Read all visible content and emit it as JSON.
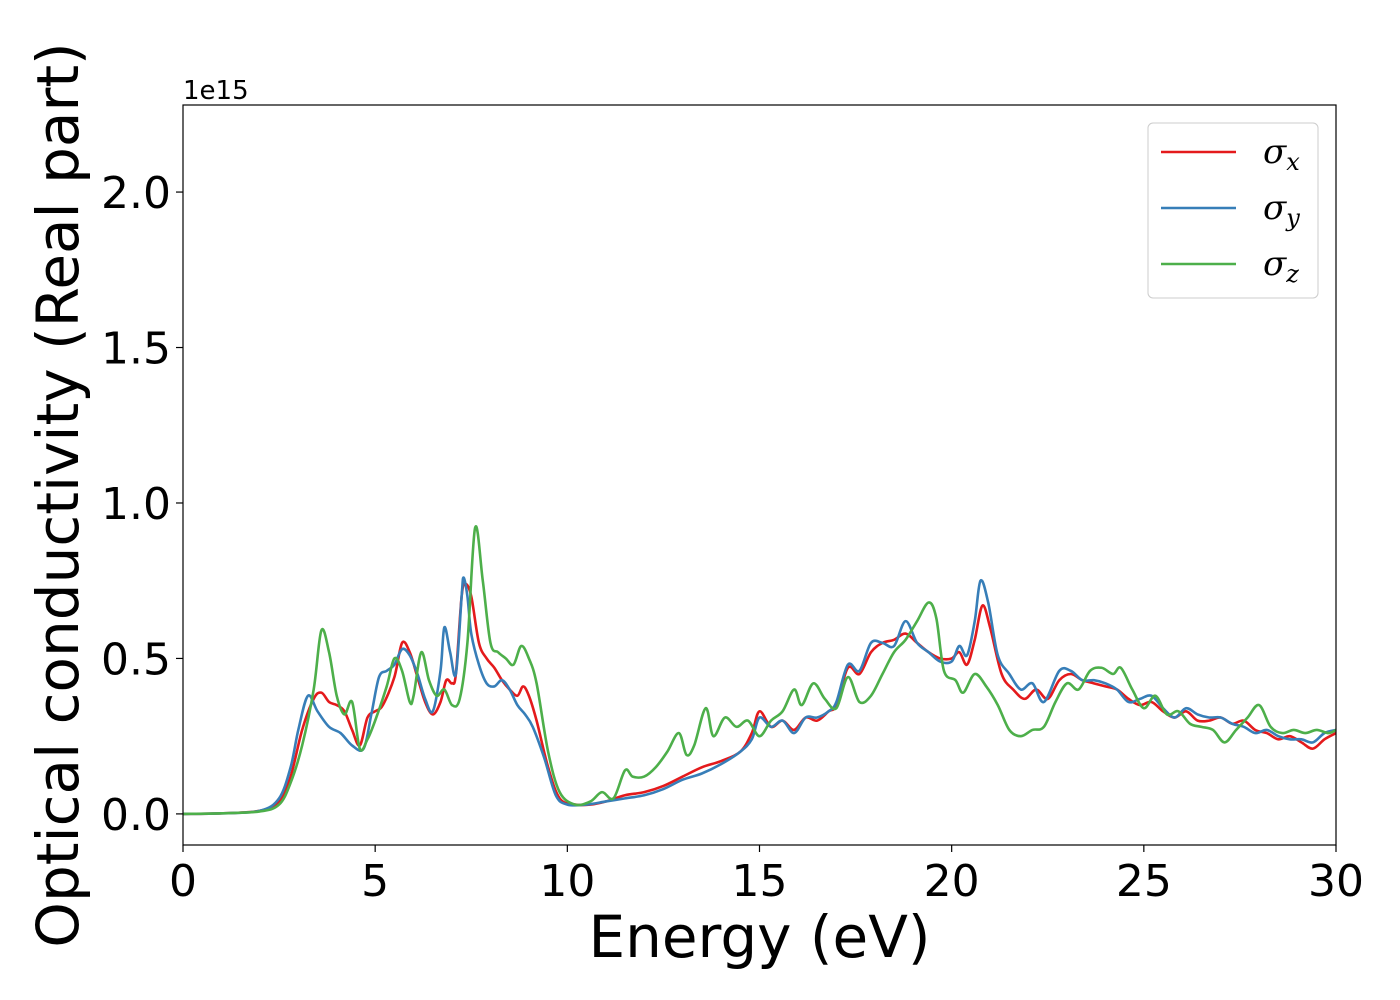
{
  "chart_data": {
    "type": "line",
    "xlabel": "Energy (eV)",
    "ylabel": "Optical conductivity (Real part)",
    "y_offset_label": "1e15",
    "xlim": [
      0,
      30
    ],
    "ylim": [
      -0.1,
      2.28
    ],
    "x_ticks": [
      0,
      5,
      10,
      15,
      20,
      25,
      30
    ],
    "x_tick_labels": [
      "0",
      "5",
      "10",
      "15",
      "20",
      "25",
      "30"
    ],
    "y_ticks": [
      0.0,
      0.5,
      1.0,
      1.5,
      2.0
    ],
    "y_tick_labels": [
      "0.0",
      "0.5",
      "1.0",
      "1.5",
      "2.0"
    ],
    "grid": false,
    "legend_position": "top-right",
    "series": [
      {
        "name": "σ",
        "subscript": "x",
        "color": "#e41a1c",
        "points": [
          [
            0,
            0
          ],
          [
            1,
            0.002
          ],
          [
            2,
            0.01
          ],
          [
            2.5,
            0.04
          ],
          [
            2.8,
            0.12
          ],
          [
            3.1,
            0.27
          ],
          [
            3.4,
            0.37
          ],
          [
            3.6,
            0.39
          ],
          [
            3.8,
            0.36
          ],
          [
            4.0,
            0.35
          ],
          [
            4.2,
            0.33
          ],
          [
            4.4,
            0.27
          ],
          [
            4.6,
            0.22
          ],
          [
            4.8,
            0.31
          ],
          [
            5.0,
            0.33
          ],
          [
            5.2,
            0.35
          ],
          [
            5.5,
            0.44
          ],
          [
            5.7,
            0.55
          ],
          [
            5.9,
            0.52
          ],
          [
            6.1,
            0.44
          ],
          [
            6.3,
            0.36
          ],
          [
            6.5,
            0.32
          ],
          [
            6.7,
            0.36
          ],
          [
            6.85,
            0.43
          ],
          [
            7.0,
            0.42
          ],
          [
            7.1,
            0.45
          ],
          [
            7.25,
            0.7
          ],
          [
            7.35,
            0.74
          ],
          [
            7.5,
            0.7
          ],
          [
            7.7,
            0.55
          ],
          [
            7.9,
            0.5
          ],
          [
            8.1,
            0.47
          ],
          [
            8.3,
            0.43
          ],
          [
            8.5,
            0.4
          ],
          [
            8.7,
            0.38
          ],
          [
            8.85,
            0.41
          ],
          [
            9.0,
            0.38
          ],
          [
            9.2,
            0.3
          ],
          [
            9.5,
            0.15
          ],
          [
            9.8,
            0.05
          ],
          [
            10.2,
            0.03
          ],
          [
            10.6,
            0.03
          ],
          [
            11.0,
            0.04
          ],
          [
            11.5,
            0.06
          ],
          [
            12.0,
            0.07
          ],
          [
            12.5,
            0.09
          ],
          [
            13.0,
            0.12
          ],
          [
            13.5,
            0.15
          ],
          [
            14.0,
            0.17
          ],
          [
            14.5,
            0.2
          ],
          [
            14.8,
            0.26
          ],
          [
            15.0,
            0.33
          ],
          [
            15.3,
            0.28
          ],
          [
            15.6,
            0.3
          ],
          [
            15.9,
            0.27
          ],
          [
            16.2,
            0.31
          ],
          [
            16.5,
            0.3
          ],
          [
            16.8,
            0.33
          ],
          [
            17.0,
            0.35
          ],
          [
            17.3,
            0.47
          ],
          [
            17.6,
            0.45
          ],
          [
            17.9,
            0.52
          ],
          [
            18.2,
            0.55
          ],
          [
            18.5,
            0.56
          ],
          [
            18.8,
            0.58
          ],
          [
            19.1,
            0.55
          ],
          [
            19.4,
            0.52
          ],
          [
            19.7,
            0.5
          ],
          [
            20.0,
            0.5
          ],
          [
            20.2,
            0.52
          ],
          [
            20.4,
            0.48
          ],
          [
            20.6,
            0.56
          ],
          [
            20.8,
            0.67
          ],
          [
            21.0,
            0.6
          ],
          [
            21.3,
            0.45
          ],
          [
            21.6,
            0.4
          ],
          [
            21.9,
            0.37
          ],
          [
            22.2,
            0.4
          ],
          [
            22.5,
            0.37
          ],
          [
            22.8,
            0.43
          ],
          [
            23.1,
            0.45
          ],
          [
            23.4,
            0.43
          ],
          [
            23.7,
            0.42
          ],
          [
            24.0,
            0.41
          ],
          [
            24.3,
            0.4
          ],
          [
            24.6,
            0.37
          ],
          [
            24.9,
            0.35
          ],
          [
            25.2,
            0.36
          ],
          [
            25.5,
            0.33
          ],
          [
            25.8,
            0.31
          ],
          [
            26.1,
            0.33
          ],
          [
            26.4,
            0.3
          ],
          [
            26.7,
            0.3
          ],
          [
            27.0,
            0.31
          ],
          [
            27.3,
            0.29
          ],
          [
            27.6,
            0.3
          ],
          [
            27.9,
            0.27
          ],
          [
            28.2,
            0.26
          ],
          [
            28.5,
            0.24
          ],
          [
            28.8,
            0.25
          ],
          [
            29.1,
            0.23
          ],
          [
            29.4,
            0.21
          ],
          [
            29.7,
            0.24
          ],
          [
            30,
            0.26
          ]
        ]
      },
      {
        "name": "σ",
        "subscript": "y",
        "color": "#377eb8",
        "points": [
          [
            0,
            0
          ],
          [
            1,
            0.002
          ],
          [
            2,
            0.01
          ],
          [
            2.5,
            0.05
          ],
          [
            2.8,
            0.15
          ],
          [
            3.0,
            0.27
          ],
          [
            3.25,
            0.38
          ],
          [
            3.5,
            0.33
          ],
          [
            3.8,
            0.28
          ],
          [
            4.1,
            0.26
          ],
          [
            4.4,
            0.22
          ],
          [
            4.7,
            0.21
          ],
          [
            4.9,
            0.32
          ],
          [
            5.1,
            0.44
          ],
          [
            5.3,
            0.46
          ],
          [
            5.5,
            0.48
          ],
          [
            5.7,
            0.53
          ],
          [
            5.9,
            0.51
          ],
          [
            6.1,
            0.45
          ],
          [
            6.3,
            0.37
          ],
          [
            6.5,
            0.33
          ],
          [
            6.7,
            0.46
          ],
          [
            6.8,
            0.6
          ],
          [
            6.95,
            0.52
          ],
          [
            7.1,
            0.45
          ],
          [
            7.25,
            0.7
          ],
          [
            7.3,
            0.76
          ],
          [
            7.4,
            0.7
          ],
          [
            7.5,
            0.58
          ],
          [
            7.7,
            0.48
          ],
          [
            7.9,
            0.42
          ],
          [
            8.1,
            0.41
          ],
          [
            8.3,
            0.43
          ],
          [
            8.5,
            0.4
          ],
          [
            8.7,
            0.35
          ],
          [
            8.9,
            0.32
          ],
          [
            9.1,
            0.28
          ],
          [
            9.4,
            0.18
          ],
          [
            9.7,
            0.06
          ],
          [
            10.0,
            0.03
          ],
          [
            10.5,
            0.03
          ],
          [
            11.0,
            0.04
          ],
          [
            11.5,
            0.05
          ],
          [
            12.0,
            0.06
          ],
          [
            12.5,
            0.08
          ],
          [
            13.0,
            0.11
          ],
          [
            13.5,
            0.13
          ],
          [
            14.0,
            0.16
          ],
          [
            14.5,
            0.2
          ],
          [
            14.8,
            0.24
          ],
          [
            15.0,
            0.31
          ],
          [
            15.3,
            0.28
          ],
          [
            15.6,
            0.3
          ],
          [
            15.9,
            0.26
          ],
          [
            16.2,
            0.31
          ],
          [
            16.5,
            0.31
          ],
          [
            16.8,
            0.33
          ],
          [
            17.0,
            0.36
          ],
          [
            17.3,
            0.48
          ],
          [
            17.6,
            0.46
          ],
          [
            17.9,
            0.55
          ],
          [
            18.2,
            0.55
          ],
          [
            18.5,
            0.54
          ],
          [
            18.8,
            0.62
          ],
          [
            19.1,
            0.55
          ],
          [
            19.4,
            0.52
          ],
          [
            19.7,
            0.49
          ],
          [
            20.0,
            0.49
          ],
          [
            20.2,
            0.54
          ],
          [
            20.4,
            0.51
          ],
          [
            20.6,
            0.62
          ],
          [
            20.75,
            0.75
          ],
          [
            20.95,
            0.68
          ],
          [
            21.2,
            0.51
          ],
          [
            21.5,
            0.45
          ],
          [
            21.8,
            0.4
          ],
          [
            22.1,
            0.42
          ],
          [
            22.4,
            0.36
          ],
          [
            22.8,
            0.46
          ],
          [
            23.1,
            0.46
          ],
          [
            23.4,
            0.43
          ],
          [
            23.7,
            0.43
          ],
          [
            24.0,
            0.42
          ],
          [
            24.3,
            0.4
          ],
          [
            24.6,
            0.36
          ],
          [
            24.9,
            0.37
          ],
          [
            25.2,
            0.38
          ],
          [
            25.5,
            0.34
          ],
          [
            25.8,
            0.31
          ],
          [
            26.1,
            0.34
          ],
          [
            26.4,
            0.32
          ],
          [
            26.7,
            0.31
          ],
          [
            27.0,
            0.31
          ],
          [
            27.3,
            0.29
          ],
          [
            27.6,
            0.28
          ],
          [
            27.9,
            0.26
          ],
          [
            28.2,
            0.27
          ],
          [
            28.5,
            0.25
          ],
          [
            28.8,
            0.24
          ],
          [
            29.1,
            0.24
          ],
          [
            29.4,
            0.23
          ],
          [
            29.7,
            0.26
          ],
          [
            30,
            0.27
          ]
        ]
      },
      {
        "name": "σ",
        "subscript": "z",
        "color": "#4daf4a",
        "points": [
          [
            0,
            0
          ],
          [
            1,
            0.002
          ],
          [
            2,
            0.008
          ],
          [
            2.5,
            0.03
          ],
          [
            2.8,
            0.1
          ],
          [
            3.1,
            0.22
          ],
          [
            3.4,
            0.4
          ],
          [
            3.6,
            0.59
          ],
          [
            3.8,
            0.52
          ],
          [
            4.0,
            0.38
          ],
          [
            4.2,
            0.32
          ],
          [
            4.4,
            0.36
          ],
          [
            4.6,
            0.21
          ],
          [
            4.8,
            0.24
          ],
          [
            5.0,
            0.3
          ],
          [
            5.3,
            0.41
          ],
          [
            5.5,
            0.5
          ],
          [
            5.7,
            0.46
          ],
          [
            5.9,
            0.36
          ],
          [
            6.0,
            0.38
          ],
          [
            6.2,
            0.52
          ],
          [
            6.4,
            0.43
          ],
          [
            6.6,
            0.38
          ],
          [
            6.8,
            0.4
          ],
          [
            7.0,
            0.35
          ],
          [
            7.2,
            0.37
          ],
          [
            7.4,
            0.55
          ],
          [
            7.6,
            0.92
          ],
          [
            7.8,
            0.75
          ],
          [
            8.0,
            0.55
          ],
          [
            8.2,
            0.52
          ],
          [
            8.4,
            0.5
          ],
          [
            8.6,
            0.48
          ],
          [
            8.8,
            0.54
          ],
          [
            9.0,
            0.5
          ],
          [
            9.2,
            0.42
          ],
          [
            9.5,
            0.2
          ],
          [
            9.8,
            0.07
          ],
          [
            10.2,
            0.03
          ],
          [
            10.6,
            0.04
          ],
          [
            10.9,
            0.07
          ],
          [
            11.2,
            0.05
          ],
          [
            11.5,
            0.14
          ],
          [
            11.7,
            0.12
          ],
          [
            12.0,
            0.12
          ],
          [
            12.3,
            0.15
          ],
          [
            12.6,
            0.2
          ],
          [
            12.9,
            0.26
          ],
          [
            13.1,
            0.19
          ],
          [
            13.3,
            0.22
          ],
          [
            13.6,
            0.34
          ],
          [
            13.8,
            0.25
          ],
          [
            14.1,
            0.31
          ],
          [
            14.4,
            0.28
          ],
          [
            14.7,
            0.3
          ],
          [
            15.0,
            0.25
          ],
          [
            15.3,
            0.3
          ],
          [
            15.6,
            0.33
          ],
          [
            15.9,
            0.4
          ],
          [
            16.1,
            0.35
          ],
          [
            16.4,
            0.42
          ],
          [
            16.7,
            0.37
          ],
          [
            17.0,
            0.34
          ],
          [
            17.3,
            0.44
          ],
          [
            17.6,
            0.36
          ],
          [
            17.9,
            0.38
          ],
          [
            18.2,
            0.45
          ],
          [
            18.5,
            0.52
          ],
          [
            18.8,
            0.56
          ],
          [
            19.1,
            0.62
          ],
          [
            19.4,
            0.68
          ],
          [
            19.6,
            0.63
          ],
          [
            19.8,
            0.46
          ],
          [
            20.1,
            0.43
          ],
          [
            20.3,
            0.39
          ],
          [
            20.6,
            0.45
          ],
          [
            20.9,
            0.41
          ],
          [
            21.2,
            0.35
          ],
          [
            21.5,
            0.27
          ],
          [
            21.8,
            0.25
          ],
          [
            22.1,
            0.27
          ],
          [
            22.4,
            0.28
          ],
          [
            22.7,
            0.36
          ],
          [
            23.0,
            0.42
          ],
          [
            23.3,
            0.4
          ],
          [
            23.6,
            0.46
          ],
          [
            23.9,
            0.47
          ],
          [
            24.2,
            0.45
          ],
          [
            24.4,
            0.47
          ],
          [
            24.7,
            0.4
          ],
          [
            25.0,
            0.34
          ],
          [
            25.3,
            0.38
          ],
          [
            25.6,
            0.32
          ],
          [
            25.9,
            0.33
          ],
          [
            26.2,
            0.29
          ],
          [
            26.5,
            0.28
          ],
          [
            26.8,
            0.27
          ],
          [
            27.1,
            0.23
          ],
          [
            27.4,
            0.27
          ],
          [
            27.7,
            0.31
          ],
          [
            28.0,
            0.35
          ],
          [
            28.3,
            0.28
          ],
          [
            28.6,
            0.26
          ],
          [
            28.9,
            0.27
          ],
          [
            29.2,
            0.26
          ],
          [
            29.5,
            0.27
          ],
          [
            29.8,
            0.26
          ],
          [
            30,
            0.27
          ]
        ]
      }
    ]
  }
}
